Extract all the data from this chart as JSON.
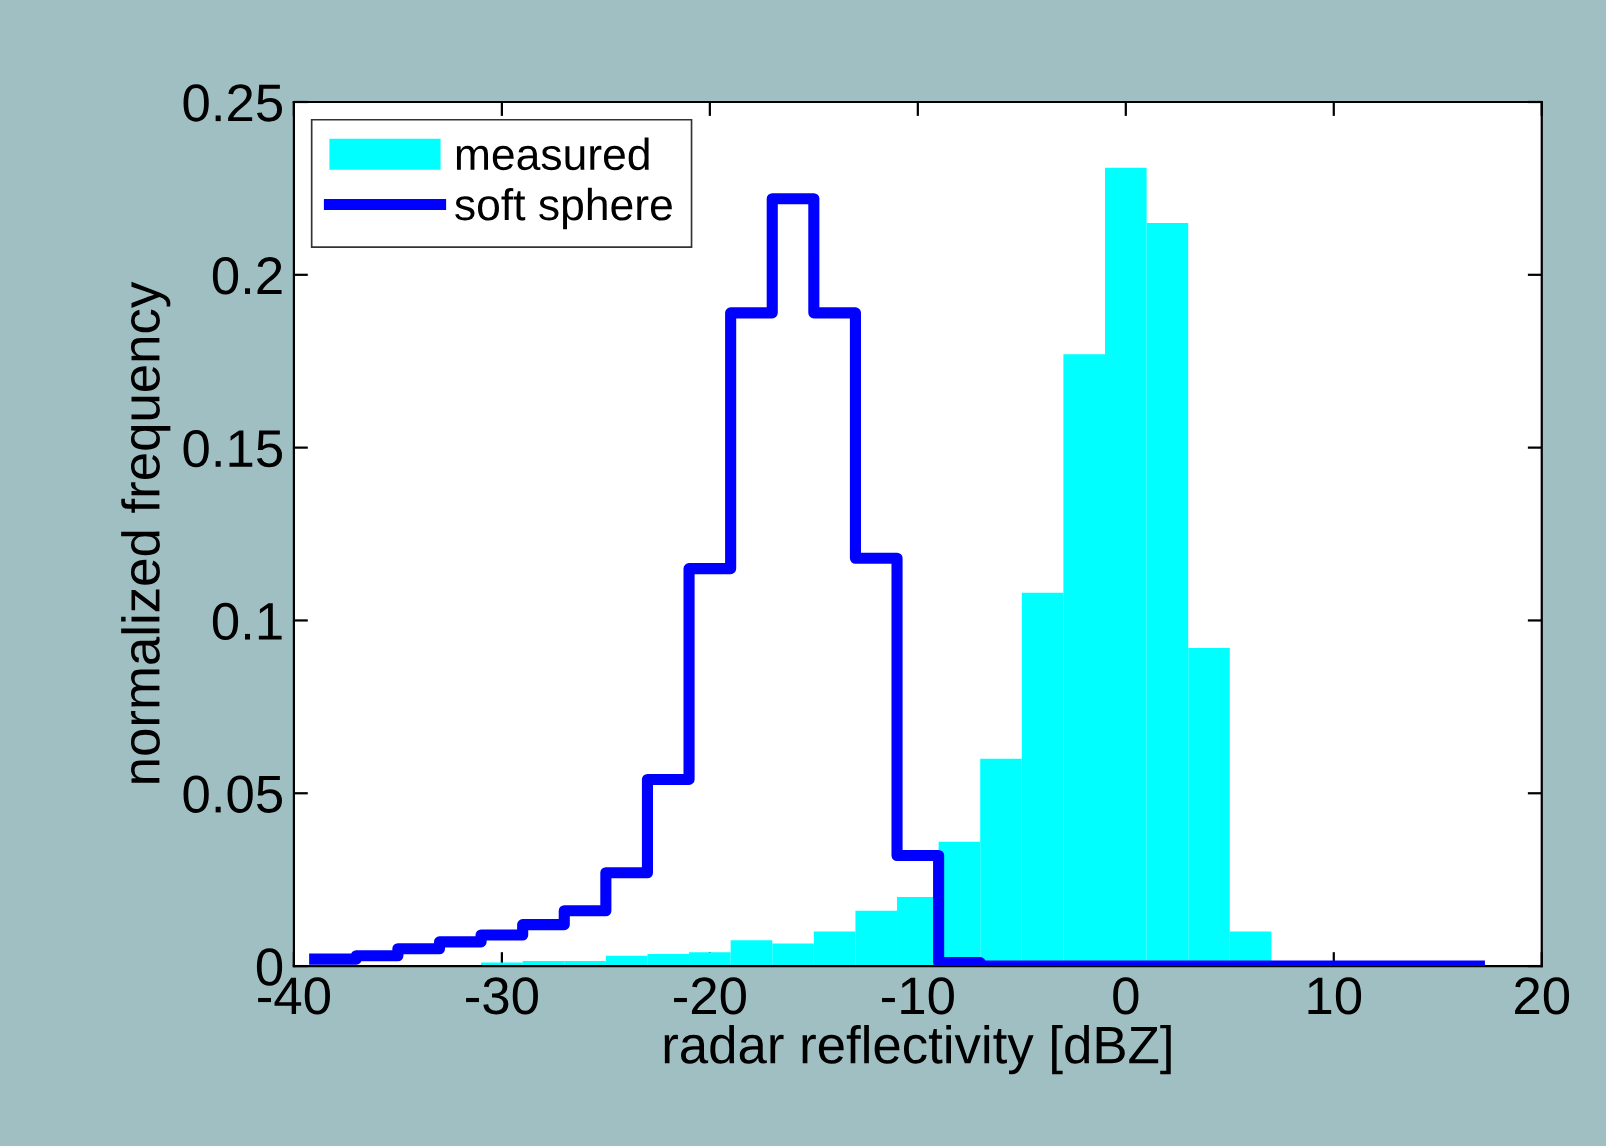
{
  "chart_data": {
    "type": "histogram",
    "xlabel": "radar reflectivity [dBZ]",
    "ylabel": "normalized frequency",
    "bins": [
      -39,
      -37,
      -35,
      -33,
      -31,
      -29,
      -27,
      -25,
      -23,
      -21,
      -19,
      -17,
      -15,
      -13,
      -11,
      -9,
      -7,
      -5,
      -3,
      -1,
      1,
      3,
      5,
      7,
      9,
      11,
      13,
      15,
      17,
      19
    ],
    "series": [
      {
        "name": "measured",
        "color": "#00ffff",
        "values": [
          0,
          0,
          0,
          0,
          0.001,
          0.0015,
          0.0015,
          0.003,
          0.0035,
          0.004,
          0.0075,
          0.0065,
          0.01,
          0.016,
          0.02,
          0.036,
          0.06,
          0.108,
          0.177,
          0.231,
          0.215,
          0.092,
          0.01,
          0,
          0,
          0,
          0,
          0,
          0
        ]
      },
      {
        "name": "soft sphere",
        "type": "step",
        "color": "#0000ff",
        "x": [
          -39,
          -37,
          -35,
          -33,
          -31,
          -29,
          -27,
          -25,
          -23,
          -21,
          -19,
          -17,
          -15,
          -13,
          -11,
          -9,
          -7,
          -5,
          -3,
          -1,
          1,
          3,
          5,
          7,
          9,
          11,
          13,
          15,
          17
        ],
        "values": [
          0.002,
          0.003,
          0.005,
          0.007,
          0.009,
          0.012,
          0.016,
          0.027,
          0.054,
          0.115,
          0.189,
          0.222,
          0.189,
          0.118,
          0.032,
          0.001,
          0,
          0,
          0,
          0,
          0,
          0,
          0,
          0,
          0,
          0,
          0,
          0,
          0
        ]
      }
    ],
    "xlim": [
      -40,
      20
    ],
    "xticks": [
      -40,
      -30,
      -20,
      -10,
      0,
      10,
      20
    ],
    "ylim": [
      0,
      0.25
    ],
    "yticks": [
      0,
      0.05,
      0.1,
      0.15,
      0.2,
      0.25
    ],
    "grid": false,
    "legend": "top left",
    "line_style": "solid"
  }
}
